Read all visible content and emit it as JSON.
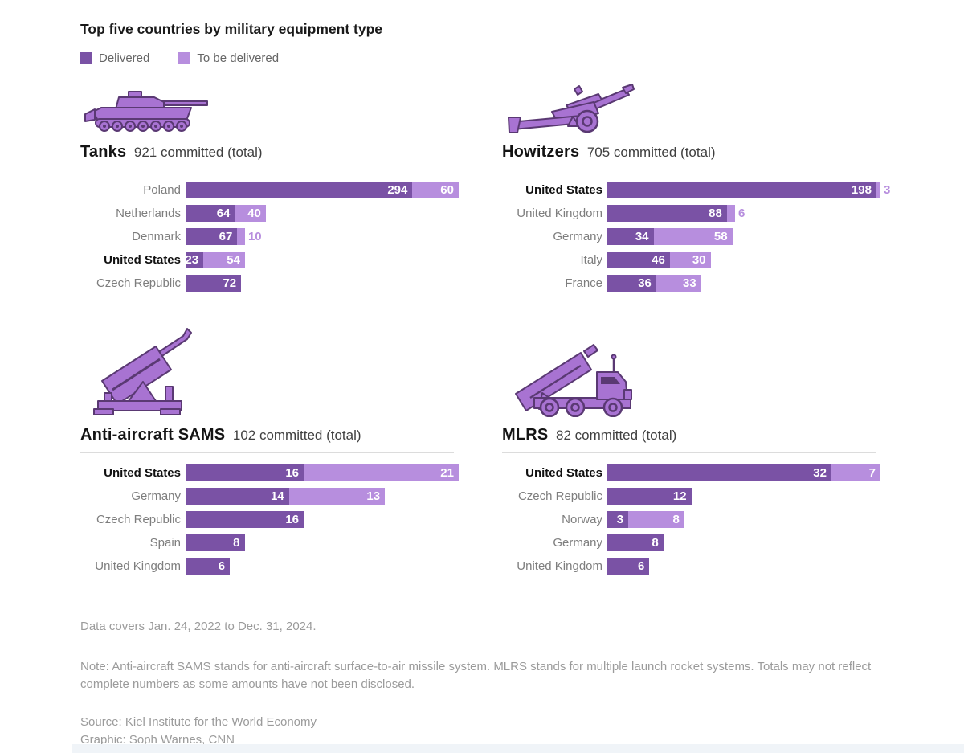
{
  "title": "Top five countries by military equipment type",
  "legend": {
    "delivered": "Delivered",
    "to_be_delivered": "To be delivered"
  },
  "colors": {
    "delivered": "#7a52a5",
    "to_be_delivered": "#b78ede",
    "icon_fill": "#a873d2",
    "icon_stroke": "#5a3973",
    "country_label": "#7e7e7e",
    "highlight_label": "#111111",
    "outside_value_label": "#b78ede"
  },
  "chart_data": [
    {
      "type": "bar",
      "orientation": "horizontal",
      "stacked": true,
      "title": "Tanks",
      "subtitle": "921 committed (total)",
      "total_committed": 921,
      "icon": "tank-icon",
      "categories": [
        "Poland",
        "Netherlands",
        "Denmark",
        "United States",
        "Czech Republic"
      ],
      "highlighted_category": "United States",
      "series": [
        {
          "name": "Delivered",
          "values": [
            294,
            64,
            67,
            23,
            72
          ]
        },
        {
          "name": "To be delivered",
          "values": [
            60,
            40,
            10,
            54,
            0
          ]
        }
      ]
    },
    {
      "type": "bar",
      "orientation": "horizontal",
      "stacked": true,
      "title": "Howitzers",
      "subtitle": "705 committed (total)",
      "total_committed": 705,
      "icon": "howitzer-icon",
      "categories": [
        "United States",
        "United Kingdom",
        "Germany",
        "Italy",
        "France"
      ],
      "highlighted_category": "United States",
      "series": [
        {
          "name": "Delivered",
          "values": [
            198,
            88,
            34,
            46,
            36
          ]
        },
        {
          "name": "To be delivered",
          "values": [
            3,
            6,
            58,
            30,
            33
          ]
        }
      ]
    },
    {
      "type": "bar",
      "orientation": "horizontal",
      "stacked": true,
      "title": "Anti-aircraft SAMS",
      "subtitle": "102 committed (total)",
      "total_committed": 102,
      "icon": "sam-launcher-icon",
      "categories": [
        "United States",
        "Germany",
        "Czech Republic",
        "Spain",
        "United Kingdom"
      ],
      "highlighted_category": "United States",
      "series": [
        {
          "name": "Delivered",
          "values": [
            16,
            14,
            16,
            8,
            6
          ]
        },
        {
          "name": "To be delivered",
          "values": [
            21,
            13,
            0,
            0,
            0
          ]
        }
      ]
    },
    {
      "type": "bar",
      "orientation": "horizontal",
      "stacked": true,
      "title": "MLRS",
      "subtitle": "82 committed (total)",
      "total_committed": 82,
      "icon": "mlrs-icon",
      "categories": [
        "United States",
        "Czech Republic",
        "Norway",
        "Germany",
        "United Kingdom"
      ],
      "highlighted_category": "United States",
      "series": [
        {
          "name": "Delivered",
          "values": [
            32,
            12,
            3,
            8,
            6
          ]
        },
        {
          "name": "To be delivered",
          "values": [
            7,
            0,
            8,
            0,
            0
          ]
        }
      ]
    }
  ],
  "footnotes": {
    "coverage": "Data covers Jan. 24, 2022 to Dec. 31, 2024.",
    "note": "Note: Anti-aircraft SAMS stands for anti-aircraft surface-to-air missile system. MLRS stands for multiple launch rocket systems. Totals may not reflect complete numbers as some amounts have not been disclosed.",
    "source": "Source: Kiel Institute for the World Economy",
    "credit": "Graphic: Soph Warnes, CNN"
  }
}
